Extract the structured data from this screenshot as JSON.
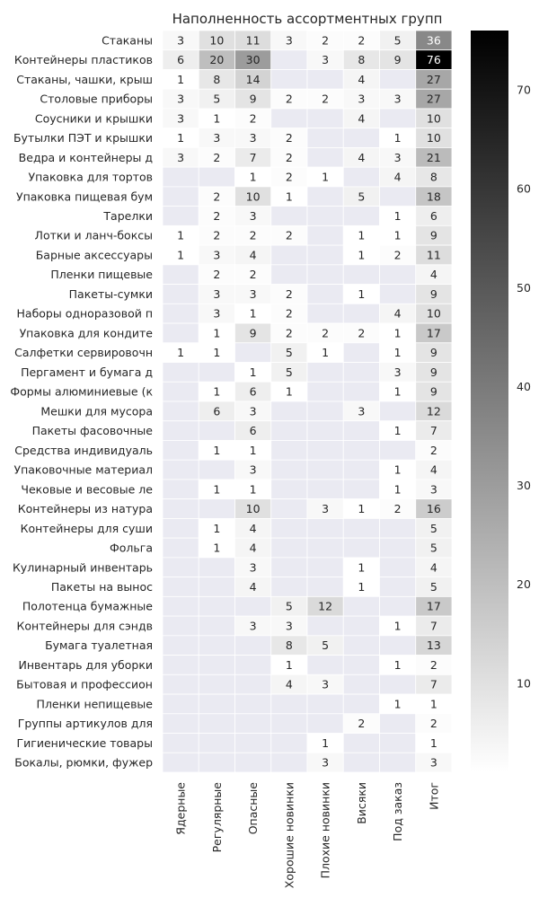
{
  "chart_data": {
    "type": "heatmap",
    "title": "Наполненность ассортментных групп",
    "xlabel": "",
    "ylabel": "",
    "colormap": "white-to-black",
    "missing_color": "#EAEAF2",
    "grid_line_color": "#FFFFFF",
    "colorbar": {
      "min": 1,
      "max": 76,
      "ticks": [
        10,
        20,
        30,
        40,
        50,
        60,
        70
      ]
    },
    "columns": [
      "Ядерные",
      "Регулярные",
      "Опасные",
      "Хорошие новинки",
      "Плохие новинки",
      "Висяки",
      "Под заказ",
      "Итог"
    ],
    "rows": [
      "Стаканы",
      "Контейнеры пластиков",
      "Стаканы, чашки, крыш",
      "Столовые приборы",
      "Соусники и крышки",
      "Бутылки ПЭТ и крышки",
      "Ведра и контейнеры д",
      "Упаковка для тортов",
      "Упаковка пищевая бум",
      "Тарелки",
      "Лотки и ланч-боксы",
      "Барные аксессуары",
      "Пленки пищевые",
      "Пакеты-сумки",
      "Наборы одноразовой п",
      "Упаковка для кондите",
      "Салфетки сервировочн",
      "Пергамент и бумага д",
      "Формы алюминиевые (к",
      "Мешки для мусора",
      "Пакеты фасовочные",
      "Средства индивидуаль",
      "Упаковочные материал",
      "Чековые и весовые ле",
      "Контейнеры из натура",
      "Контейнеры для суши",
      "Фольга",
      "Кулинарный инвентарь",
      "Пакеты на вынос",
      "Полотенца бумажные",
      "Контейнеры для сэндв",
      "Бумага туалетная",
      "Инвентарь для уборки",
      "Бытовая и профессион",
      "Пленки непищевые",
      "Группы артикулов для",
      "Гигиенические товары",
      "Бокалы, рюмки, фужер"
    ],
    "values": [
      [
        3,
        10,
        11,
        3,
        2,
        2,
        5,
        36
      ],
      [
        6,
        20,
        30,
        null,
        3,
        8,
        9,
        76
      ],
      [
        1,
        8,
        14,
        null,
        null,
        4,
        null,
        27
      ],
      [
        3,
        5,
        9,
        2,
        2,
        3,
        3,
        27
      ],
      [
        3,
        1,
        2,
        null,
        null,
        4,
        null,
        10
      ],
      [
        1,
        3,
        3,
        2,
        null,
        null,
        1,
        10
      ],
      [
        3,
        2,
        7,
        2,
        null,
        4,
        3,
        21
      ],
      [
        null,
        null,
        1,
        2,
        1,
        null,
        4,
        8
      ],
      [
        null,
        2,
        10,
        1,
        null,
        5,
        null,
        18
      ],
      [
        null,
        2,
        3,
        null,
        null,
        null,
        1,
        6
      ],
      [
        1,
        2,
        2,
        2,
        null,
        1,
        1,
        9
      ],
      [
        1,
        3,
        4,
        null,
        null,
        1,
        2,
        11
      ],
      [
        null,
        2,
        2,
        null,
        null,
        null,
        null,
        4
      ],
      [
        null,
        3,
        3,
        2,
        null,
        1,
        null,
        9
      ],
      [
        null,
        3,
        1,
        2,
        null,
        null,
        4,
        10
      ],
      [
        null,
        1,
        9,
        2,
        2,
        2,
        1,
        17
      ],
      [
        1,
        1,
        null,
        5,
        1,
        null,
        1,
        9
      ],
      [
        null,
        null,
        1,
        5,
        null,
        null,
        3,
        9
      ],
      [
        null,
        1,
        6,
        1,
        null,
        null,
        1,
        9
      ],
      [
        null,
        6,
        3,
        null,
        null,
        3,
        null,
        12
      ],
      [
        null,
        null,
        6,
        null,
        null,
        null,
        1,
        7
      ],
      [
        null,
        1,
        1,
        null,
        null,
        null,
        null,
        2
      ],
      [
        null,
        null,
        3,
        null,
        null,
        null,
        1,
        4
      ],
      [
        null,
        1,
        1,
        null,
        null,
        null,
        1,
        3
      ],
      [
        null,
        null,
        10,
        null,
        3,
        1,
        2,
        16
      ],
      [
        null,
        1,
        4,
        null,
        null,
        null,
        null,
        5
      ],
      [
        null,
        1,
        4,
        null,
        null,
        null,
        null,
        5
      ],
      [
        null,
        null,
        3,
        null,
        null,
        1,
        null,
        4
      ],
      [
        null,
        null,
        4,
        null,
        null,
        1,
        null,
        5
      ],
      [
        null,
        null,
        null,
        5,
        12,
        null,
        null,
        17
      ],
      [
        null,
        null,
        3,
        3,
        null,
        null,
        1,
        7
      ],
      [
        null,
        null,
        null,
        8,
        5,
        null,
        null,
        13
      ],
      [
        null,
        null,
        null,
        1,
        null,
        null,
        1,
        2
      ],
      [
        null,
        null,
        null,
        4,
        3,
        null,
        null,
        7
      ],
      [
        null,
        null,
        null,
        null,
        null,
        null,
        1,
        1
      ],
      [
        null,
        null,
        null,
        null,
        null,
        2,
        null,
        2
      ],
      [
        null,
        null,
        null,
        null,
        1,
        null,
        null,
        1
      ],
      [
        null,
        null,
        null,
        null,
        3,
        null,
        null,
        3
      ]
    ]
  }
}
